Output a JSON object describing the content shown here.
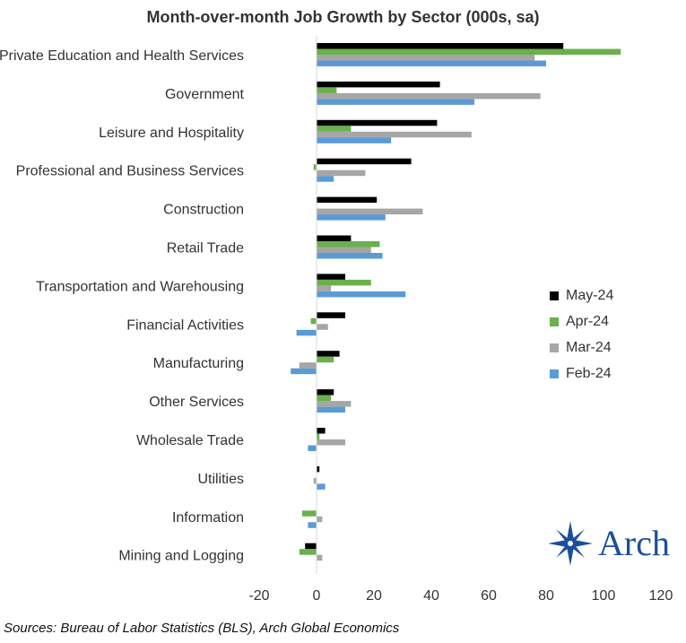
{
  "chart_data": {
    "type": "bar",
    "orientation": "horizontal",
    "title": "Month-over-month Job Growth by Sector (000s, sa)",
    "categories": [
      "Private Education and Health Services",
      "Government",
      "Leisure and Hospitality",
      "Professional and Business Services",
      "Construction",
      "Retail Trade",
      "Transportation and Warehousing",
      "Financial Activities",
      "Manufacturing",
      "Other Services",
      "Wholesale Trade",
      "Utilities",
      "Information",
      "Mining and Logging"
    ],
    "series": [
      {
        "name": "May-24",
        "color": "#000000",
        "values": [
          86,
          43,
          42,
          33,
          21,
          12,
          10,
          10,
          8,
          6,
          3,
          1,
          0,
          -4
        ]
      },
      {
        "name": "Apr-24",
        "color": "#6ab04c",
        "values": [
          106,
          7,
          12,
          -1,
          0,
          22,
          19,
          -2,
          6,
          5,
          1,
          0,
          -5,
          -6
        ]
      },
      {
        "name": "Mar-24",
        "color": "#a6a6a6",
        "values": [
          76,
          78,
          54,
          17,
          37,
          19,
          5,
          4,
          -6,
          12,
          10,
          -1,
          2,
          2
        ]
      },
      {
        "name": "Feb-24",
        "color": "#5b9bd5",
        "values": [
          80,
          55,
          26,
          6,
          24,
          23,
          31,
          -7,
          -9,
          10,
          -3,
          3,
          -3,
          0
        ]
      }
    ],
    "xlim": [
      -20,
      120
    ],
    "xticks": [
      "-20",
      "0",
      "20",
      "40",
      "60",
      "80",
      "100",
      "120"
    ],
    "grid": false,
    "legend_position": "right"
  },
  "source": "Sources: Bureau of Labor Statistics (BLS), Arch Global Economics",
  "logo": {
    "text": "Arch",
    "color": "#1a4f9c"
  }
}
